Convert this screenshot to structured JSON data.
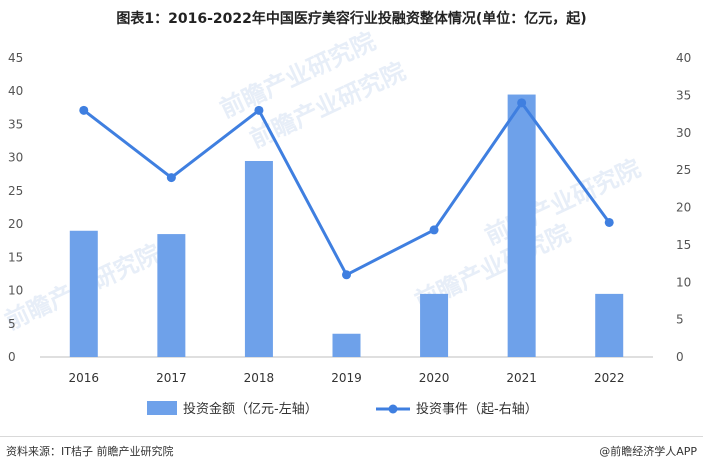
{
  "title": "图表1：2016-2022年中国医疗美容行业投融资整体情况(单位：亿元，起)",
  "source_text": "资料来源：IT桔子 前瞻产业研究院",
  "brand_text": "@前瞻经济学人APP",
  "watermark_text": "前瞻产业研究院",
  "colors": {
    "bar": "#6ea1ea",
    "line": "#3f7fe0",
    "grid": "#e6e6e6"
  },
  "chart_data": {
    "type": "bar",
    "categories": [
      "2016",
      "2017",
      "2018",
      "2019",
      "2020",
      "2021",
      "2022"
    ],
    "series": [
      {
        "name": "投资金额（亿元-左轴）",
        "type": "bar",
        "axis": "left",
        "values": [
          19,
          18.5,
          29.5,
          3.5,
          9.5,
          39.5,
          9.5
        ]
      },
      {
        "name": "投资事件（起-右轴）",
        "type": "line",
        "axis": "right",
        "values": [
          33,
          24,
          33,
          11,
          17,
          34,
          18
        ]
      }
    ],
    "y_left": {
      "min": 0,
      "max": 45,
      "ticks": [
        0,
        5,
        10,
        15,
        20,
        25,
        30,
        35,
        40,
        45
      ]
    },
    "y_right": {
      "min": 0,
      "max": 40,
      "ticks": [
        0,
        5,
        10,
        15,
        20,
        25,
        30,
        35,
        40
      ]
    },
    "grid": false,
    "legend_position": "bottom"
  }
}
